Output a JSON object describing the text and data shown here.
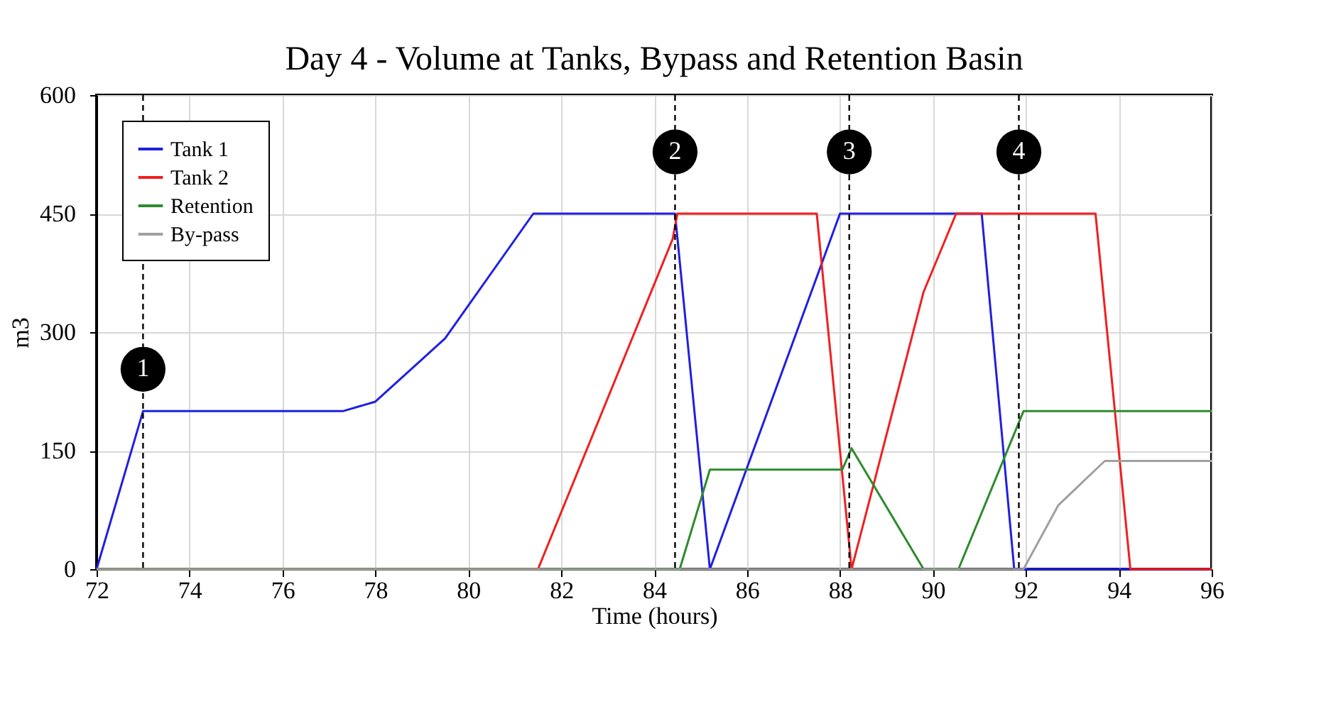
{
  "chart_data": {
    "type": "line",
    "title": "Day 4 - Volume at Tanks, Bypass and Retention Basin",
    "xlabel": "Time (hours)",
    "ylabel": "m3",
    "xlim": [
      72,
      96
    ],
    "xticks": [
      72,
      74,
      76,
      78,
      80,
      82,
      84,
      86,
      88,
      90,
      92,
      94,
      96
    ],
    "ylim": [
      0,
      600
    ],
    "yticks": [
      0,
      150,
      300,
      450,
      600
    ],
    "grid": true,
    "legend": "top left",
    "line_style": "solid",
    "marker": "none",
    "series": [
      {
        "name": "Tank 1",
        "color": "#2020e0",
        "x": [
          72,
          73,
          77.3,
          78,
          79.5,
          81.4,
          84.45,
          85.2,
          88,
          91.05,
          91.75,
          96
        ],
        "values": [
          0,
          200,
          200,
          212,
          292,
          450,
          450,
          0,
          450,
          450,
          0,
          0
        ]
      },
      {
        "name": "Tank 2",
        "color": "#f02020",
        "x": [
          72,
          81.5,
          84.4,
          84.5,
          87.5,
          88.25,
          89.8,
          90.5,
          93.5,
          94.25,
          96
        ],
        "values": [
          0,
          0,
          418,
          450,
          450,
          0,
          351,
          450,
          450,
          0,
          0
        ]
      },
      {
        "name": "Retention",
        "color": "#2e8b2e",
        "x": [
          72,
          84.55,
          85.2,
          88.05,
          88.25,
          89.8,
          90.55,
          91.95,
          96
        ],
        "values": [
          0,
          0,
          126,
          126,
          153,
          0,
          0,
          200,
          200
        ]
      },
      {
        "name": "By-pass",
        "color": "#a0a0a0",
        "x": [
          72,
          91.95,
          92.7,
          93.7,
          96
        ],
        "values": [
          0,
          0,
          81,
          137,
          137
        ]
      }
    ],
    "ref_lines": [
      {
        "axis": "x",
        "value": 73,
        "line_style": "dashed"
      },
      {
        "axis": "x",
        "value": 84.45,
        "line_style": "dashed"
      },
      {
        "axis": "x",
        "value": 88.2,
        "line_style": "dashed"
      },
      {
        "axis": "x",
        "value": 91.85,
        "line_style": "dashed"
      }
    ],
    "annotations": [
      {
        "text": "1",
        "x": 73,
        "y": 253
      },
      {
        "text": "2",
        "x": 84.45,
        "y": 528
      },
      {
        "text": "3",
        "x": 88.2,
        "y": 528
      },
      {
        "text": "4",
        "x": 91.85,
        "y": 528
      }
    ]
  }
}
